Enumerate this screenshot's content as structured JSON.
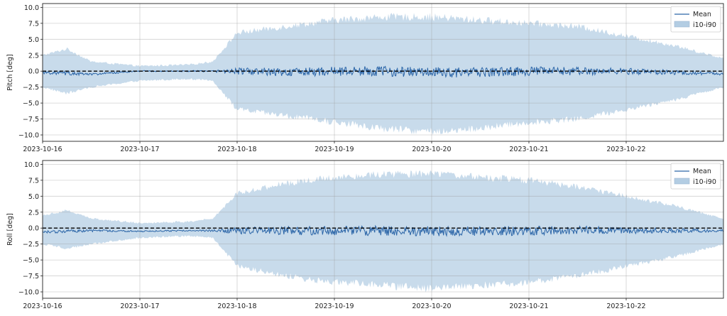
{
  "chart_data": [
    {
      "type": "area",
      "ylabel": "Pitch [deg]",
      "ylim": [
        -11,
        10.6
      ],
      "yticks": [
        10.0,
        7.5,
        5.0,
        2.5,
        0.0,
        -2.5,
        -5.0,
        -7.5,
        -10.0
      ],
      "ytick_labels": [
        "10.0",
        "7.5",
        "5.0",
        "2.5",
        "0.0",
        "−2.5",
        "−5.0",
        "−7.5",
        "−10.0"
      ],
      "x_range": [
        "2023-10-16",
        "2023-10-23"
      ],
      "xtick_labels": [
        "2023-10-16",
        "2023-10-17",
        "2023-10-18",
        "2023-10-19",
        "2023-10-20",
        "2023-10-21",
        "2023-10-22"
      ],
      "grid": true,
      "legend_position": "top-right",
      "series": [
        {
          "name": "Mean",
          "style": "line",
          "color": "#2c66a8",
          "x": [
            "2023-10-16",
            "2023-10-16 12:00",
            "2023-10-17",
            "2023-10-17 12:00",
            "2023-10-18",
            "2023-10-18 12:00",
            "2023-10-19",
            "2023-10-19 12:00",
            "2023-10-20",
            "2023-10-20 12:00",
            "2023-10-21",
            "2023-10-21 12:00",
            "2023-10-22",
            "2023-10-22 12:00",
            "2023-10-23"
          ],
          "values": [
            -0.2,
            -0.5,
            0.0,
            0.0,
            0.0,
            -0.2,
            0.0,
            0.0,
            -0.2,
            -0.2,
            0.0,
            0.0,
            0.0,
            -0.2,
            -0.4
          ]
        },
        {
          "name": "i10-i90",
          "style": "band",
          "color": "#b3cde3",
          "x": [
            "2023-10-16",
            "2023-10-16 06:00",
            "2023-10-16 12:00",
            "2023-10-17",
            "2023-10-17 12:00",
            "2023-10-17 18:00",
            "2023-10-18",
            "2023-10-18 12:00",
            "2023-10-19",
            "2023-10-19 12:00",
            "2023-10-20",
            "2023-10-20 12:00",
            "2023-10-21",
            "2023-10-21 12:00",
            "2023-10-22",
            "2023-10-22 12:00",
            "2023-10-23"
          ],
          "lower": [
            -2.5,
            -3.5,
            -2.5,
            -1.5,
            -1.2,
            -1.5,
            -6.0,
            -7.0,
            -8.0,
            -9.0,
            -9.5,
            -9.0,
            -8.0,
            -7.5,
            -6.0,
            -4.5,
            -2.5
          ],
          "upper": [
            2.5,
            3.5,
            1.5,
            0.8,
            1.0,
            1.5,
            6.0,
            7.0,
            8.0,
            8.5,
            8.5,
            8.0,
            7.5,
            7.0,
            5.5,
            4.0,
            2.0
          ]
        }
      ],
      "reference_line": {
        "y": 0.0,
        "style": "dashed",
        "color": "#000000"
      }
    },
    {
      "type": "area",
      "ylabel": "Roll [deg]",
      "ylim": [
        -11,
        10.6
      ],
      "yticks": [
        10.0,
        7.5,
        5.0,
        2.5,
        0.0,
        -2.5,
        -5.0,
        -7.5,
        -10.0
      ],
      "ytick_labels": [
        "10.0",
        "7.5",
        "5.0",
        "2.5",
        "0.0",
        "−2.5",
        "−5.0",
        "−7.5",
        "−10.0"
      ],
      "x_range": [
        "2023-10-16",
        "2023-10-23"
      ],
      "xtick_labels": [
        "2023-10-16",
        "2023-10-17",
        "2023-10-18",
        "2023-10-19",
        "2023-10-20",
        "2023-10-21",
        "2023-10-22"
      ],
      "grid": true,
      "legend_position": "top-right",
      "series": [
        {
          "name": "Mean",
          "style": "line",
          "color": "#2c66a8",
          "x": [
            "2023-10-16",
            "2023-10-16 12:00",
            "2023-10-17",
            "2023-10-17 12:00",
            "2023-10-18",
            "2023-10-18 12:00",
            "2023-10-19",
            "2023-10-19 12:00",
            "2023-10-20",
            "2023-10-20 12:00",
            "2023-10-21",
            "2023-10-21 12:00",
            "2023-10-22",
            "2023-10-22 12:00",
            "2023-10-23"
          ],
          "values": [
            -0.6,
            -0.4,
            -0.5,
            -0.4,
            -0.4,
            -0.4,
            -0.5,
            -0.4,
            -0.5,
            -0.5,
            -0.4,
            -0.3,
            -0.4,
            -0.4,
            -0.4
          ]
        },
        {
          "name": "i10-i90",
          "style": "band",
          "color": "#b3cde3",
          "x": [
            "2023-10-16",
            "2023-10-16 06:00",
            "2023-10-16 12:00",
            "2023-10-17",
            "2023-10-17 12:00",
            "2023-10-17 18:00",
            "2023-10-18",
            "2023-10-18 12:00",
            "2023-10-19",
            "2023-10-19 12:00",
            "2023-10-20",
            "2023-10-20 12:00",
            "2023-10-21",
            "2023-10-21 12:00",
            "2023-10-22",
            "2023-10-22 12:00",
            "2023-10-23"
          ],
          "lower": [
            -2.5,
            -3.2,
            -2.5,
            -1.5,
            -1.2,
            -1.5,
            -6.0,
            -7.5,
            -8.5,
            -9.0,
            -9.5,
            -9.0,
            -8.5,
            -7.5,
            -6.0,
            -4.5,
            -2.5
          ],
          "upper": [
            2.0,
            2.8,
            1.5,
            0.8,
            1.0,
            1.5,
            5.5,
            7.0,
            8.0,
            8.5,
            8.5,
            8.0,
            7.5,
            6.5,
            5.0,
            3.5,
            1.5
          ]
        }
      ],
      "reference_line": {
        "y": 0.0,
        "style": "dashed",
        "color": "#000000"
      }
    }
  ]
}
